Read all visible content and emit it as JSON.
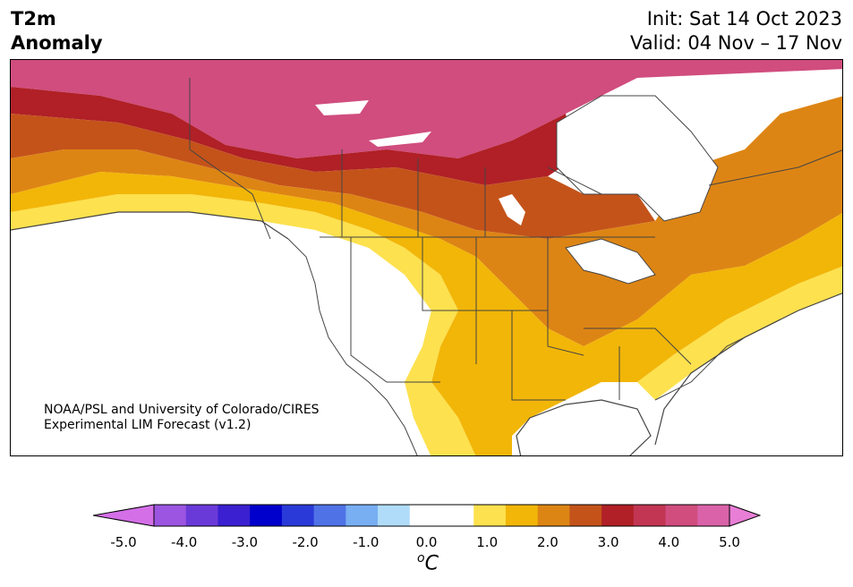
{
  "header": {
    "title_line1": "T2m",
    "title_line2": "Anomaly",
    "init": "Init: Sat 14 Oct 2023",
    "valid": "Valid: 04 Nov – 17 Nov"
  },
  "credit": {
    "line1": "NOAA/PSL and University of Colorado/CIRES",
    "line2": "Experimental LIM Forecast (v1.2)"
  },
  "colorbar": {
    "unit_main": "C",
    "unit_sup": "o",
    "ticks": [
      "-5.0",
      "-4.0",
      "-3.0",
      "-2.0",
      "-1.0",
      "0.0",
      "1.0",
      "2.0",
      "3.0",
      "4.0",
      "5.0"
    ],
    "colors": [
      "#d46fe8",
      "#9b55e0",
      "#6a3ad8",
      "#3a20d0",
      "#0000cd",
      "#2a3ad8",
      "#4f72e6",
      "#78aef2",
      "#b0dcfa",
      "#ffffff",
      "#ffffff",
      "#fde14e",
      "#f2b608",
      "#dd8514",
      "#c4531a",
      "#b02026",
      "#c23553",
      "#d04d7e",
      "#d962a8",
      "#e87ed6"
    ],
    "extend_low_color": "#d46fe8",
    "extend_high_color": "#e87ed6"
  },
  "map": {
    "land_colors": {
      "neutral": "#ffffff",
      "yellow": "#fde14e",
      "gold": "#f2b608",
      "orange": "#dd8514",
      "burnt": "#c4531a",
      "red": "#b02026",
      "crimson": "#c23553",
      "pink": "#d04d7e"
    }
  }
}
